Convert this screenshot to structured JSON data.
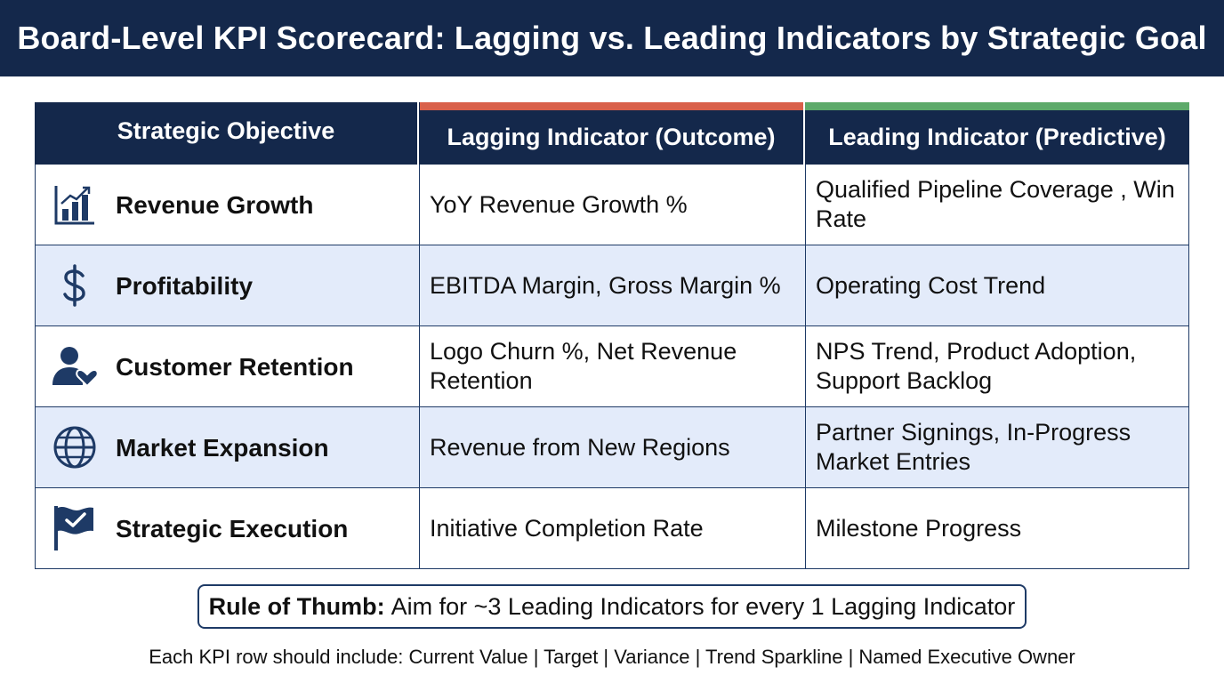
{
  "title": "Board-Level KPI Scorecard: Lagging vs. Leading Indicators by Strategic Goal",
  "headers": {
    "objective": "Strategic Objective",
    "lagging": "Lagging Indicator (Outcome)",
    "leading": "Leading Indicator (Predictive)"
  },
  "colors": {
    "navy": "#14284b",
    "lagging_accent": "#d9604a",
    "leading_accent": "#5daa6a",
    "alt_row": "#e3ebfa"
  },
  "rows": [
    {
      "icon": "bar-chart-growth-icon",
      "objective": "Revenue Growth",
      "lagging": "YoY Revenue Growth %",
      "leading": "Qualified Pipeline Coverage , Win Rate"
    },
    {
      "icon": "dollar-sign-icon",
      "objective": "Profitability",
      "lagging": "EBITDA Margin, Gross Margin %",
      "leading": "Operating Cost Trend"
    },
    {
      "icon": "customer-heart-icon",
      "objective": "Customer Retention",
      "lagging": "Logo Churn %, Net Revenue Retention",
      "leading": "NPS Trend, Product Adoption, Support Backlog"
    },
    {
      "icon": "globe-icon",
      "objective": "Market Expansion",
      "lagging": "Revenue from New Regions",
      "leading": "Partner Signings, In-Progress Market Entries"
    },
    {
      "icon": "flag-check-icon",
      "objective": "Strategic Execution",
      "lagging": "Initiative Completion Rate",
      "leading": "Milestone Progress"
    }
  ],
  "rule_of_thumb": {
    "lead": "Rule of Thumb:",
    "text": "Aim for ~3 Leading Indicators for every 1 Lagging Indicator"
  },
  "footer_note": "Each KPI row should include: Current Value | Target | Variance | Trend Sparkline | Named Executive Owner"
}
